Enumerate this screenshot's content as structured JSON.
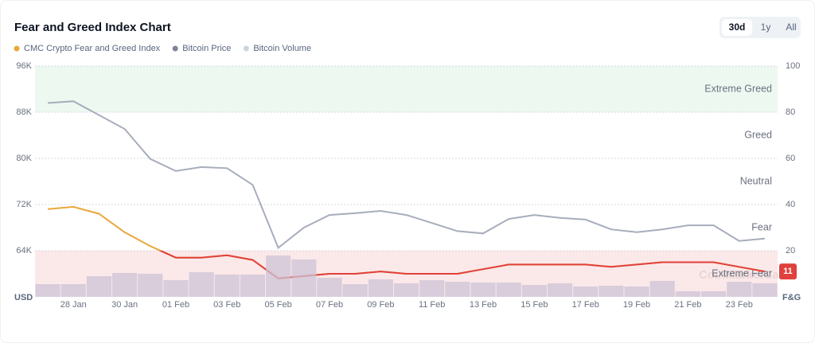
{
  "chart_data": {
    "type": "line",
    "title": "Fear and Greed Index Chart",
    "ranges": [
      "30d",
      "1y",
      "All"
    ],
    "active_range": "30d",
    "watermark": "CoinMarketCap",
    "y_label": "USD",
    "y2_label": "F&G",
    "categories": [
      null,
      "28 Jan",
      null,
      "30 Jan",
      null,
      "01 Feb",
      null,
      "03 Feb",
      null,
      "05 Feb",
      null,
      "07 Feb",
      null,
      "09 Feb",
      null,
      "11 Feb",
      null,
      "13 Feb",
      null,
      "15 Feb",
      null,
      "17 Feb",
      null,
      "19 Feb",
      null,
      "21 Feb",
      null,
      "23 Feb",
      null
    ],
    "ylim": [
      56000,
      96000
    ],
    "yticks": [
      {
        "value": 64000,
        "label": "64K"
      },
      {
        "value": 72000,
        "label": "72K"
      },
      {
        "value": 80000,
        "label": "80K"
      },
      {
        "value": 88000,
        "label": "88K"
      },
      {
        "value": 96000,
        "label": "96K"
      }
    ],
    "y2lim": [
      0,
      100
    ],
    "y2ticks": [
      20,
      40,
      60,
      80,
      100
    ],
    "y3lim": [
      0,
      290
    ],
    "grid": true,
    "zones": [
      {
        "name": "Extreme Greed",
        "from": 80,
        "to": 100,
        "color": "#edf8f1"
      },
      {
        "name": "Greed",
        "from": 60,
        "to": 80
      },
      {
        "name": "Neutral",
        "from": 40,
        "to": 60
      },
      {
        "name": "Fear",
        "from": 20,
        "to": 40
      },
      {
        "name": "Extreme Fear",
        "from": 0,
        "to": 20,
        "color": "#fbe8e9",
        "line_color": "#e0413c"
      }
    ],
    "series": [
      {
        "name": "CMC Crypto Fear and Greed Index",
        "color": "#eaa73a",
        "axis": "y2",
        "kind": "line",
        "values": [
          38,
          39,
          36,
          28,
          22,
          17,
          17,
          18,
          16,
          8,
          9,
          10,
          10,
          11,
          10,
          10,
          10,
          12,
          14,
          14,
          14,
          14,
          13,
          14,
          15,
          15,
          15,
          13,
          11
        ]
      },
      {
        "name": "Bitcoin Price",
        "color": "#a7adbb",
        "dot_color": "#7d8396",
        "axis": "y",
        "kind": "line",
        "values": [
          89600,
          89900,
          87500,
          85100,
          79900,
          77800,
          78500,
          78300,
          75400,
          64500,
          68000,
          70200,
          70500,
          70900,
          70200,
          68800,
          67400,
          67000,
          69500,
          70200,
          69700,
          69400,
          67700,
          67200,
          67700,
          68400,
          68400,
          65700,
          66100
        ]
      },
      {
        "name": "Bitcoin Volume",
        "color": "#cdc3d6",
        "dot_color": "#cfd3e0",
        "axis": "y3",
        "kind": "bar",
        "values": [
          16,
          16,
          26,
          30,
          29,
          21,
          31,
          28,
          28,
          52,
          47,
          24,
          16,
          22,
          17,
          21,
          19,
          18,
          18,
          15,
          17,
          13,
          14,
          13,
          20,
          7,
          7,
          19,
          17
        ]
      }
    ]
  }
}
